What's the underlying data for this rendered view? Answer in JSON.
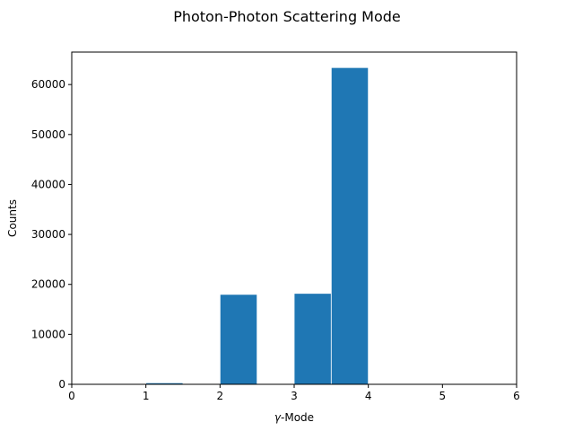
{
  "chart_data": {
    "type": "bar",
    "title": "Photon-Photon Scattering Mode",
    "xlabel_prefix": "γ",
    "xlabel_suffix": "-Mode",
    "ylabel": "Counts",
    "xlim": [
      0,
      6
    ],
    "ylim": [
      0,
      66500
    ],
    "x_ticks": [
      0,
      1,
      2,
      3,
      4,
      5,
      6
    ],
    "y_ticks": [
      0,
      10000,
      20000,
      30000,
      40000,
      50000,
      60000
    ],
    "bar_color": "#1f77b4",
    "bins": [
      {
        "x0": 1.0,
        "x1": 1.5,
        "value": 300
      },
      {
        "x0": 2.0,
        "x1": 2.5,
        "value": 18000
      },
      {
        "x0": 3.0,
        "x1": 3.5,
        "value": 18200
      },
      {
        "x0": 3.5,
        "x1": 4.0,
        "value": 63400
      }
    ],
    "grid": false,
    "legend": false
  }
}
